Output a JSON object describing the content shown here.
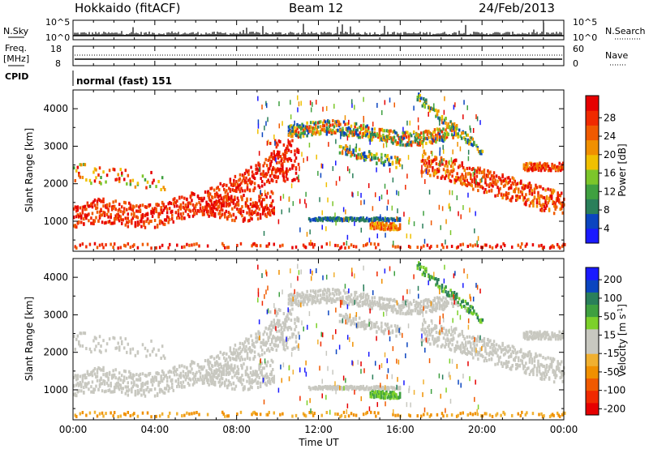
{
  "header": {
    "title": "Hokkaido (fitACF)",
    "beam": "Beam 12",
    "date": "24/Feb/2013"
  },
  "side_labels": {
    "nsky": "N.Sky",
    "freq": "Freq.",
    "mhz": "[MHz]",
    "cpid": "CPID",
    "nsearch": "N.Search",
    "nave": "Nave"
  },
  "cpid_text": "normal (fast) 151",
  "colors": {
    "power": [
      "#1a1aff",
      "#0b45c0",
      "#2a7f5a",
      "#3fa040",
      "#7cc62a",
      "#f0c000",
      "#f09000",
      "#f05a00",
      "#f02a00",
      "#e60000"
    ],
    "velocity": [
      "#e60000",
      "#f02a00",
      "#f05a00",
      "#f09000",
      "#f0b030",
      "#c8c8c0",
      "#c8c8c0",
      "#7cd02a",
      "#3fa040",
      "#2a7f5a",
      "#0b45c0",
      "#1a1aff"
    ]
  },
  "chart_data": [
    {
      "type": "line",
      "name": "noise-panel",
      "xlim": [
        "00:00",
        "24:00"
      ],
      "y_left_ticks": [
        "10^5",
        "10^0"
      ],
      "y_right_ticks": [
        "10^5",
        "10^0"
      ]
    },
    {
      "type": "line",
      "name": "freq-nave-panel",
      "y_left_ticks": [
        "18",
        "8"
      ],
      "y_right_ticks": [
        "60",
        "0"
      ]
    },
    {
      "type": "heatmap",
      "name": "power-panel",
      "ylabel": "Slant Range [km]",
      "ylim": [
        200,
        4500
      ],
      "y_ticks": [
        "1000",
        "2000",
        "3000",
        "4000"
      ],
      "colorbar_label": "Power [dB]",
      "colorbar_ticks": [
        "4",
        "8",
        "12",
        "16",
        "20",
        "24",
        "28"
      ]
    },
    {
      "type": "heatmap",
      "name": "velocity-panel",
      "ylabel": "Slant Range [km]",
      "ylim": [
        200,
        4500
      ],
      "y_ticks": [
        "1000",
        "2000",
        "3000",
        "4000"
      ],
      "colorbar_label": "Velocity [m s",
      "colorbar_label_sup": "-1",
      "colorbar_label_end": "]",
      "colorbar_ticks": [
        "200",
        "100",
        "50",
        "15",
        "-15",
        "-50",
        "-100",
        "-200"
      ],
      "x_ticks": [
        "00:00",
        "04:00",
        "08:00",
        "12:00",
        "16:00",
        "20:00",
        "00:00"
      ],
      "xlabel": "Time UT"
    }
  ]
}
